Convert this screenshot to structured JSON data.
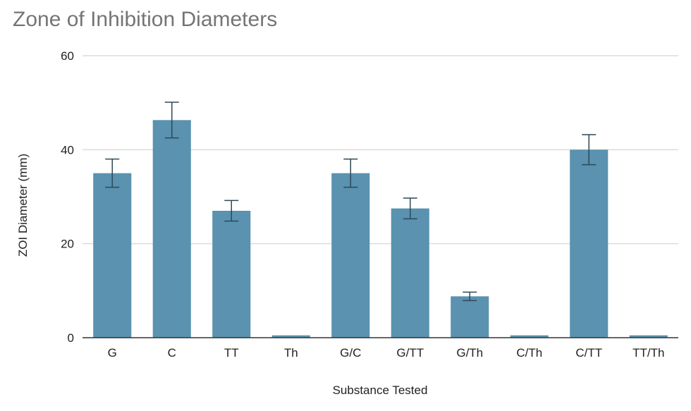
{
  "chart_data": {
    "type": "bar",
    "title": "Zone of Inhibition Diameters",
    "xlabel": "Substance Tested",
    "ylabel": "ZOI Diameter (mm)",
    "categories": [
      "G",
      "C",
      "TT",
      "Th",
      "G/C",
      "G/TT",
      "G/Th",
      "C/Th",
      "C/TT",
      "TT/Th"
    ],
    "values": [
      35,
      46.3,
      27,
      0.5,
      35,
      27.5,
      8.8,
      0.5,
      40,
      0.5
    ],
    "error": [
      3,
      3.8,
      2.2,
      0,
      3,
      2.2,
      0.9,
      0,
      3.2,
      0
    ],
    "ylim": [
      0,
      60
    ],
    "yticks": [
      0,
      20,
      40,
      60
    ],
    "grid": true,
    "legend": "none",
    "colors": {
      "bar": "#5a92b0",
      "error_bar": "#2f4858",
      "grid": "#dcdcdc",
      "axis": "#333333",
      "title": "#757575"
    }
  }
}
